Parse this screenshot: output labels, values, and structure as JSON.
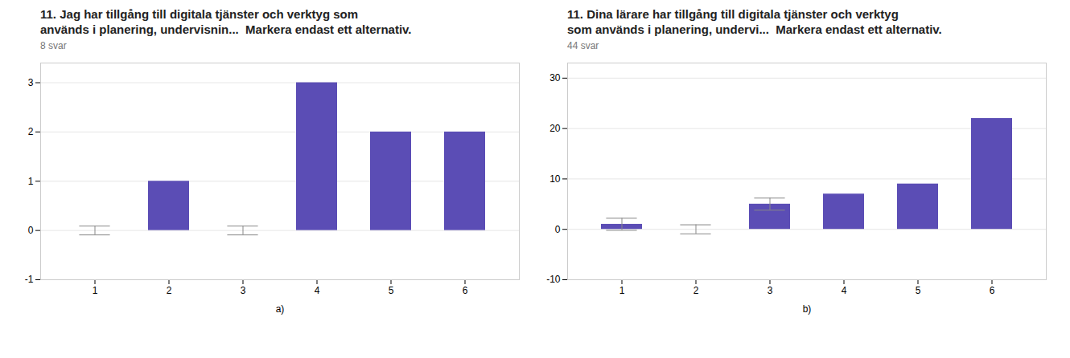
{
  "chart_data": [
    {
      "type": "bar",
      "title": "11. Jag har tillgång till digitala tjänster och verktyg som\nanvänds i planering, undervisnin...  Markera endast ett alternativ.",
      "subtitle": "8 svar",
      "xlabel": "a)",
      "categories": [
        1,
        2,
        3,
        4,
        5,
        6
      ],
      "values": [
        0,
        1,
        0,
        3,
        2,
        2
      ],
      "color": "#5b4db5",
      "ylim": [
        -1,
        3.4
      ],
      "yticks": [
        -1,
        0,
        1,
        2,
        3
      ],
      "grid": true,
      "errorbars": [
        {
          "x": 1,
          "y": 0,
          "yerr": 0.09
        },
        {
          "x": 3,
          "y": 0,
          "yerr": 0.09
        }
      ]
    },
    {
      "type": "bar",
      "title": "11. Dina lärare har tillgång till digitala tjänster och verktyg\nsom används i planering, undervi...  Markera endast ett alternativ.",
      "subtitle": "44 svar",
      "xlabel": "b)",
      "categories": [
        1,
        2,
        3,
        4,
        5,
        6
      ],
      "values": [
        1,
        0,
        5,
        7,
        9,
        22
      ],
      "color": "#5b4db5",
      "ylim": [
        -10,
        33
      ],
      "yticks": [
        -10,
        0,
        10,
        20,
        30
      ],
      "grid": true,
      "errorbars": [
        {
          "x": 1,
          "y": 1,
          "yerr": 1.2
        },
        {
          "x": 2,
          "y": 0,
          "yerr": 0.9
        },
        {
          "x": 3,
          "y": 5,
          "yerr": 1.2
        }
      ]
    }
  ]
}
